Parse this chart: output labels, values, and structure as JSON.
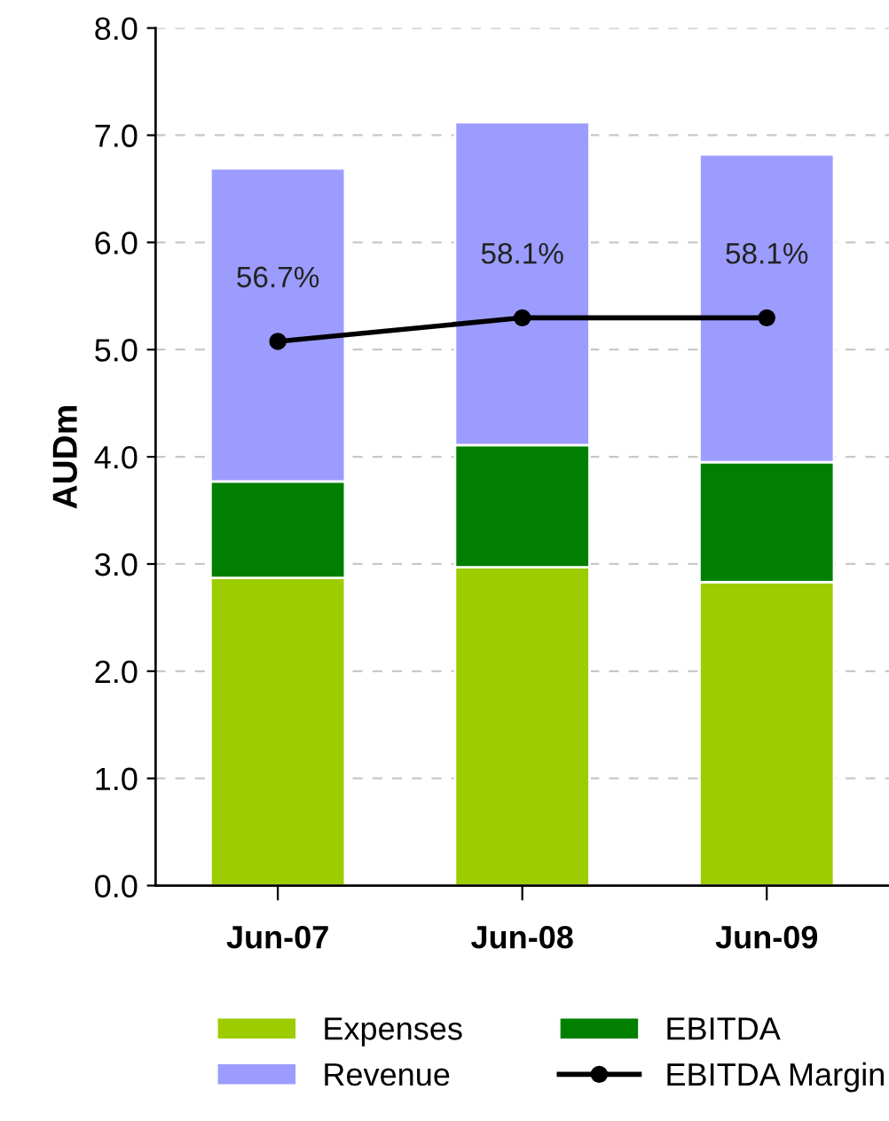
{
  "chart_data": {
    "type": "bar",
    "ylabel": "AUDm",
    "categories": [
      "Jun-07",
      "Jun-08",
      "Jun-09"
    ],
    "stacked": true,
    "series": [
      {
        "name": "Expenses",
        "color": "#9dcc00",
        "values": [
          2.87,
          2.97,
          2.83
        ]
      },
      {
        "name": "EBITDA",
        "color": "#007f00",
        "values": [
          0.9,
          1.14,
          1.12
        ]
      },
      {
        "name": "Revenue",
        "color": "#9c9cff",
        "values": [
          2.92,
          3.01,
          2.87
        ]
      },
      {
        "name": "EBITDA Margin",
        "type": "line",
        "axis": "y2",
        "color": "#000000",
        "marker": "circle",
        "values": [
          56.7,
          58.1,
          58.1
        ],
        "value_labels": [
          "56.7%",
          "58.1%",
          "58.1%"
        ]
      }
    ],
    "ylim": [
      0,
      8
    ],
    "yticks": [
      {
        "value": 0,
        "label": "0.0"
      },
      {
        "value": 1,
        "label": "1.0"
      },
      {
        "value": 2,
        "label": "2.0"
      },
      {
        "value": 3,
        "label": "3.0"
      },
      {
        "value": 4,
        "label": "4.0"
      },
      {
        "value": 5,
        "label": "5.0"
      },
      {
        "value": 6,
        "label": "6.0"
      },
      {
        "value": 7,
        "label": "7.0"
      },
      {
        "value": 8,
        "label": "8.0"
      }
    ],
    "y2lim": [
      24.4,
      75.3
    ],
    "grid": "y",
    "legend": "bottom"
  }
}
